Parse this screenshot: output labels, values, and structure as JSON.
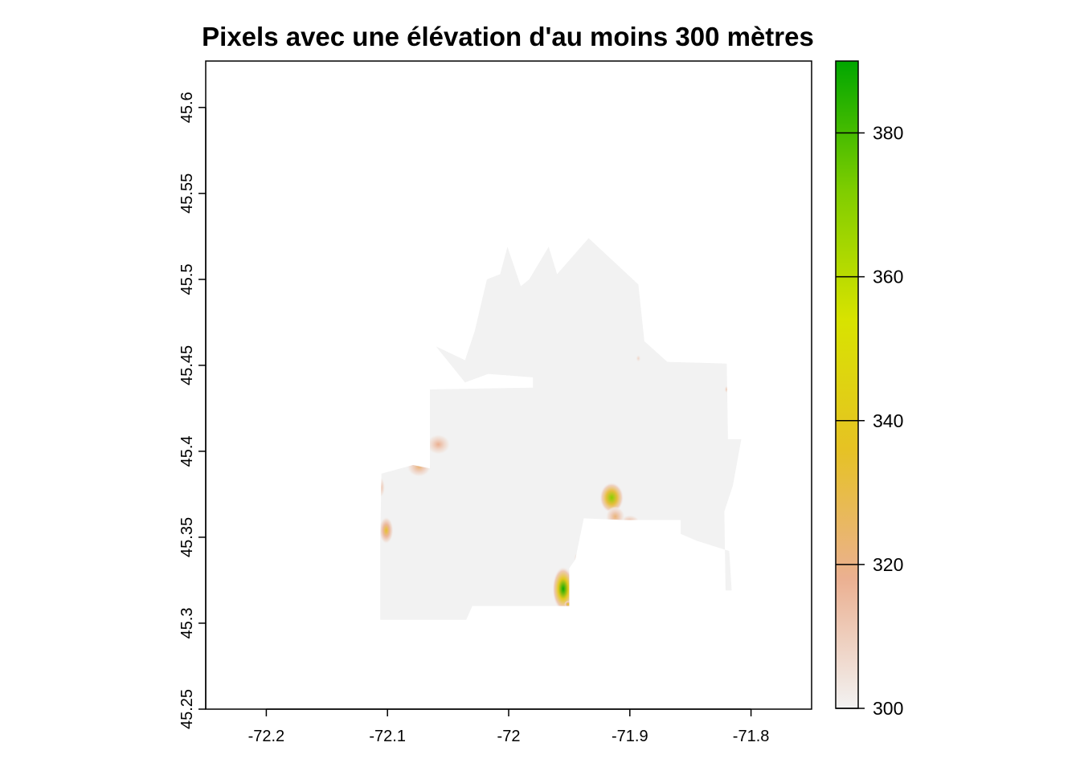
{
  "title": "Pixels avec une élévation d'au moins 300 mètres",
  "chart_data": {
    "type": "heatmap",
    "subtype": "raster-map",
    "title": "Pixels avec une élévation d'au moins 300 mètres",
    "xlabel": "",
    "ylabel": "",
    "xlim": [
      -72.25,
      -71.75
    ],
    "ylim": [
      45.25,
      45.627
    ],
    "x_ticks": [
      -72.2,
      -72.1,
      -72,
      -71.9,
      -71.8
    ],
    "x_tick_labels": [
      "-72.2",
      "-72.1",
      "-72",
      "-71.9",
      "-71.8"
    ],
    "y_ticks": [
      45.25,
      45.3,
      45.35,
      45.4,
      45.45,
      45.5,
      45.55,
      45.6
    ],
    "y_tick_labels": [
      "45.25",
      "45.3",
      "45.35",
      "45.4",
      "45.45",
      "45.5",
      "45.55",
      "45.6"
    ],
    "grid": false,
    "legend": {
      "type": "colorbar",
      "placement": "right",
      "min": 300,
      "max": 390,
      "ticks": [
        300,
        320,
        340,
        360,
        380
      ],
      "tick_labels": [
        "300",
        "320",
        "340",
        "360",
        "380"
      ],
      "colors": [
        "#f2f2f2",
        "#ebb091",
        "#e6c224",
        "#d8e300",
        "#7fcd00",
        "#00a600"
      ]
    },
    "below_threshold_color": "#f2f2f2",
    "region_outline": [
      [
        -72.105,
        45.302
      ],
      [
        -72.035,
        45.302
      ],
      [
        -72.03,
        45.31
      ],
      [
        -71.95,
        45.31
      ],
      [
        -71.95,
        45.332
      ],
      [
        -71.945,
        45.337
      ],
      [
        -71.938,
        45.361
      ],
      [
        -71.905,
        45.36
      ],
      [
        -71.858,
        45.36
      ],
      [
        -71.858,
        45.352
      ],
      [
        -71.845,
        45.348
      ],
      [
        -71.818,
        45.342
      ],
      [
        -71.816,
        45.319
      ],
      [
        -71.821,
        45.319
      ],
      [
        -71.822,
        45.365
      ],
      [
        -71.815,
        45.38
      ],
      [
        -71.808,
        45.407
      ],
      [
        -71.819,
        45.407
      ],
      [
        -71.82,
        45.451
      ],
      [
        -71.869,
        45.452
      ],
      [
        -71.888,
        45.464
      ],
      [
        -71.893,
        45.497
      ],
      [
        -71.934,
        45.524
      ],
      [
        -71.96,
        45.503
      ],
      [
        -71.967,
        45.519
      ],
      [
        -71.983,
        45.5
      ],
      [
        -71.99,
        45.496
      ],
      [
        -72.001,
        45.519
      ],
      [
        -72.007,
        45.503
      ],
      [
        -72.018,
        45.5
      ],
      [
        -72.028,
        45.47
      ],
      [
        -72.036,
        45.453
      ],
      [
        -72.06,
        45.461
      ],
      [
        -72.036,
        45.44
      ],
      [
        -72.017,
        45.445
      ],
      [
        -71.98,
        45.443
      ],
      [
        -71.98,
        45.437
      ],
      [
        -72.065,
        45.436
      ],
      [
        -72.065,
        45.39
      ],
      [
        -72.079,
        45.392
      ],
      [
        -72.105,
        45.387
      ],
      [
        -72.106,
        45.348
      ],
      [
        -72.106,
        45.302
      ]
    ],
    "hotspots": [
      {
        "lon": -72.101,
        "lat": 45.354,
        "value": 335,
        "rx": 0.006,
        "ry": 0.008
      },
      {
        "lon": -72.106,
        "lat": 45.379,
        "value": 318,
        "rx": 0.004,
        "ry": 0.006
      },
      {
        "lon": -72.074,
        "lat": 45.391,
        "value": 322,
        "rx": 0.01,
        "ry": 0.006
      },
      {
        "lon": -72.058,
        "lat": 45.404,
        "value": 318,
        "rx": 0.01,
        "ry": 0.006
      },
      {
        "lon": -71.955,
        "lat": 45.32,
        "value": 388,
        "rx": 0.009,
        "ry": 0.013
      },
      {
        "lon": -71.951,
        "lat": 45.311,
        "value": 345,
        "rx": 0.003,
        "ry": 0.002
      },
      {
        "lon": -71.915,
        "lat": 45.373,
        "value": 370,
        "rx": 0.01,
        "ry": 0.009
      },
      {
        "lon": -71.9,
        "lat": 45.359,
        "value": 318,
        "rx": 0.008,
        "ry": 0.004
      },
      {
        "lon": -71.912,
        "lat": 45.362,
        "value": 322,
        "rx": 0.008,
        "ry": 0.006
      },
      {
        "lon": -71.943,
        "lat": 45.338,
        "value": 315,
        "rx": 0.003,
        "ry": 0.003
      },
      {
        "lon": -71.82,
        "lat": 45.436,
        "value": 312,
        "rx": 0.002,
        "ry": 0.002
      },
      {
        "lon": -71.893,
        "lat": 45.454,
        "value": 308,
        "rx": 0.002,
        "ry": 0.002
      }
    ]
  }
}
